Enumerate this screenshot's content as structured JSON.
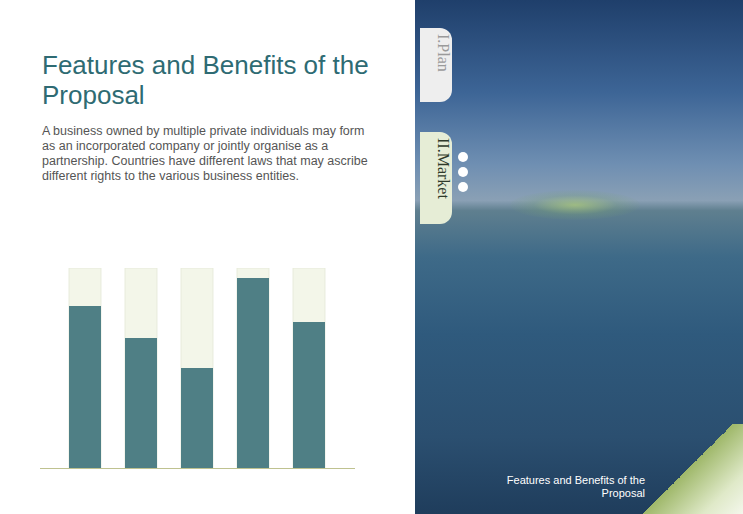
{
  "chart_data": {
    "type": "bar",
    "title": "Features and Benefits of the Proposal",
    "subtitle": "A business owned by multiple private individuals may form as an incorporated company or jointly organise as a partnership. Countries have different laws that may ascribe different rights to the various business entities.",
    "categories": [
      null,
      null,
      null,
      null,
      null
    ],
    "values": [
      81,
      65,
      50,
      95,
      73
    ],
    "color": "#4f7f85",
    "ylim": [
      0,
      100
    ],
    "tick_labels": false
  },
  "sidebar": {
    "tabs": [
      "I.Plan",
      "II.Market"
    ],
    "caption": "Features and Benefits of the Proposal"
  }
}
